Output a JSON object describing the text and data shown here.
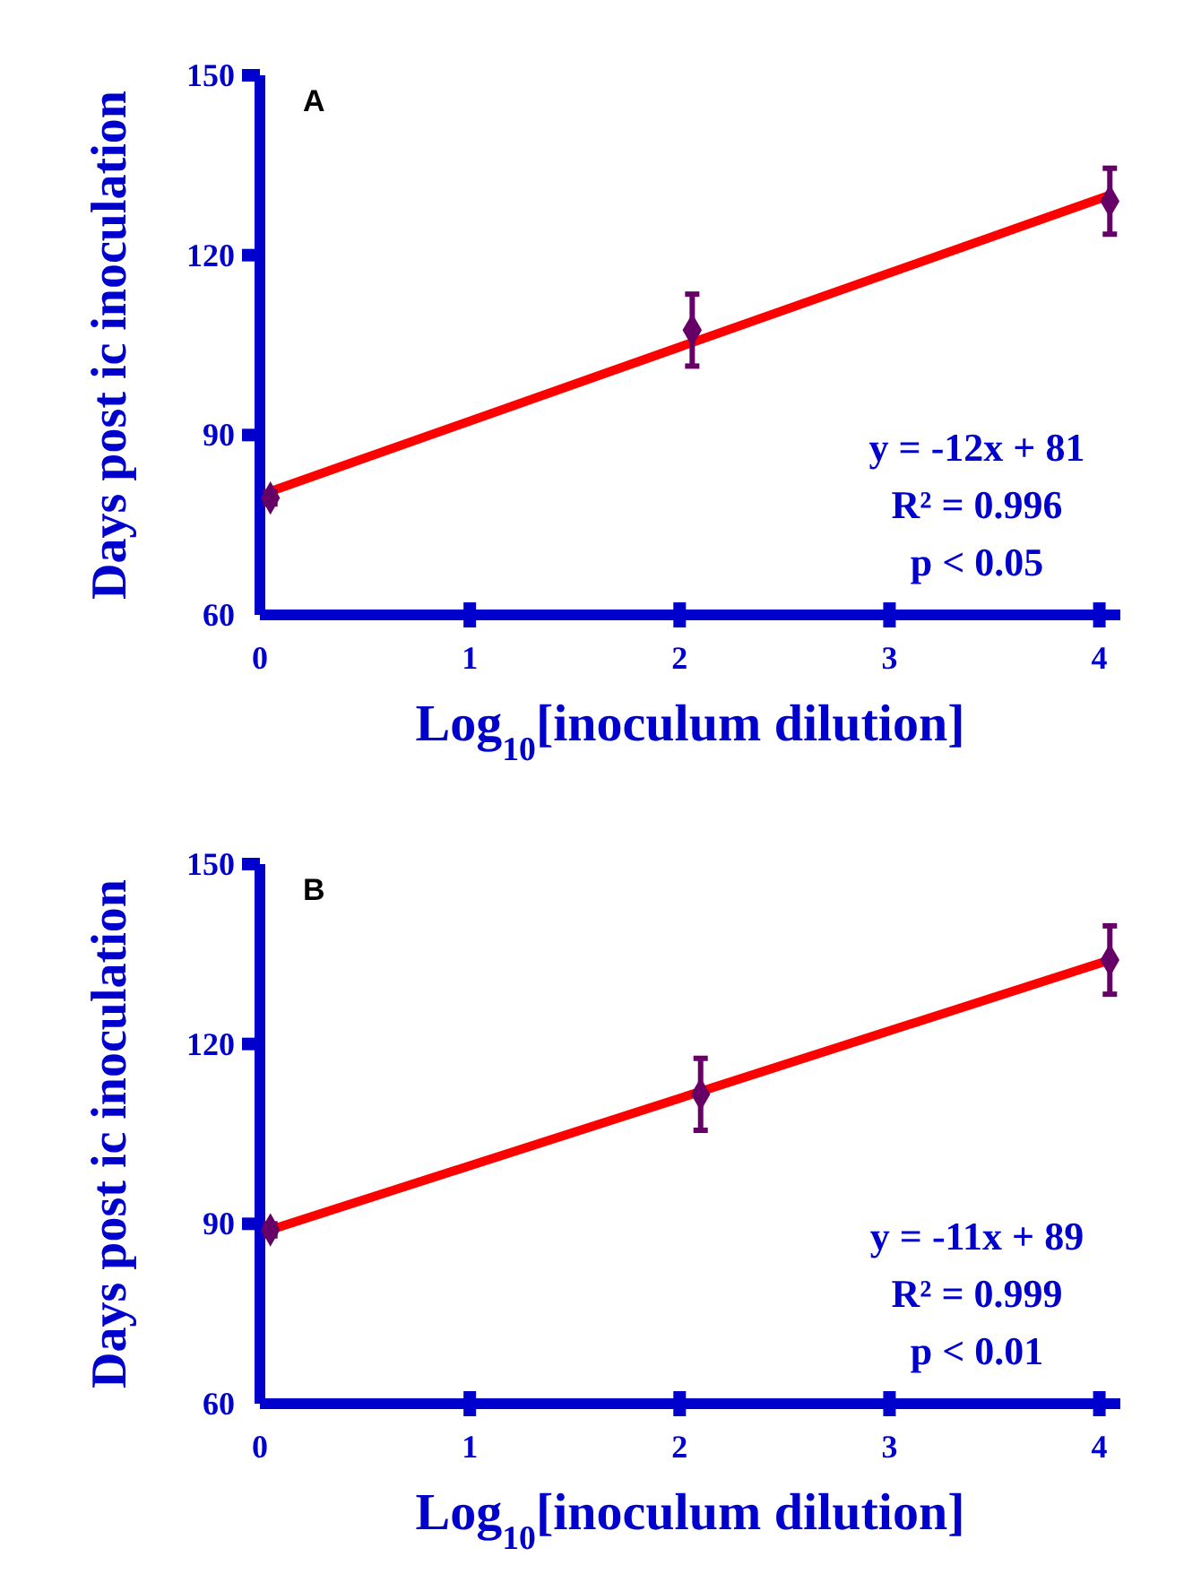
{
  "chart_data": [
    {
      "type": "scatter",
      "xlabel": "Log$_{10}$[inoculum dilution]",
      "ylabel": "Days post ic inoculation",
      "xlim": [
        0,
        4.1
      ],
      "xticks": [
        0,
        1,
        2,
        3,
        4
      ],
      "ylim": [
        60,
        150
      ],
      "yticks": [
        60,
        90,
        120,
        150
      ],
      "annotations": [
        "A",
        "y = -12x + 81",
        "R² = 0.996",
        "p < 0.05"
      ],
      "series": [
        {
          "color": "#660066",
          "marker": "diamond",
          "x": [
            0.05,
            2.06,
            4.05
          ],
          "values": [
            79.5,
            107.5,
            129
          ],
          "errors": [
            1,
            6,
            5.5
          ]
        },
        {
          "type": "line",
          "color": "#ff0000",
          "marker": "none",
          "x": [
            0.05,
            4.05
          ],
          "values": [
            80.6,
            130
          ]
        }
      ]
    },
    {
      "type": "scatter",
      "xlabel": "Log$_{10}$[inoculum dilution]",
      "ylabel": "Days post ic inoculation",
      "xlim": [
        0,
        4.1
      ],
      "xticks": [
        0,
        1,
        2,
        3,
        4
      ],
      "ylim": [
        60,
        150
      ],
      "yticks": [
        60,
        90,
        120,
        150
      ],
      "annotations": [
        "B",
        "y = -11x + 89",
        "R² = 0.999",
        "p < 0.01"
      ],
      "series": [
        {
          "color": "#660066",
          "marker": "diamond",
          "x": [
            0.05,
            2.1,
            4.05
          ],
          "values": [
            89,
            111.6,
            134
          ],
          "errors": [
            1,
            6,
            5.7
          ]
        },
        {
          "type": "line",
          "color": "#ff0000",
          "marker": "none",
          "x": [
            0.05,
            4.05
          ],
          "values": [
            89,
            134
          ]
        }
      ]
    }
  ]
}
